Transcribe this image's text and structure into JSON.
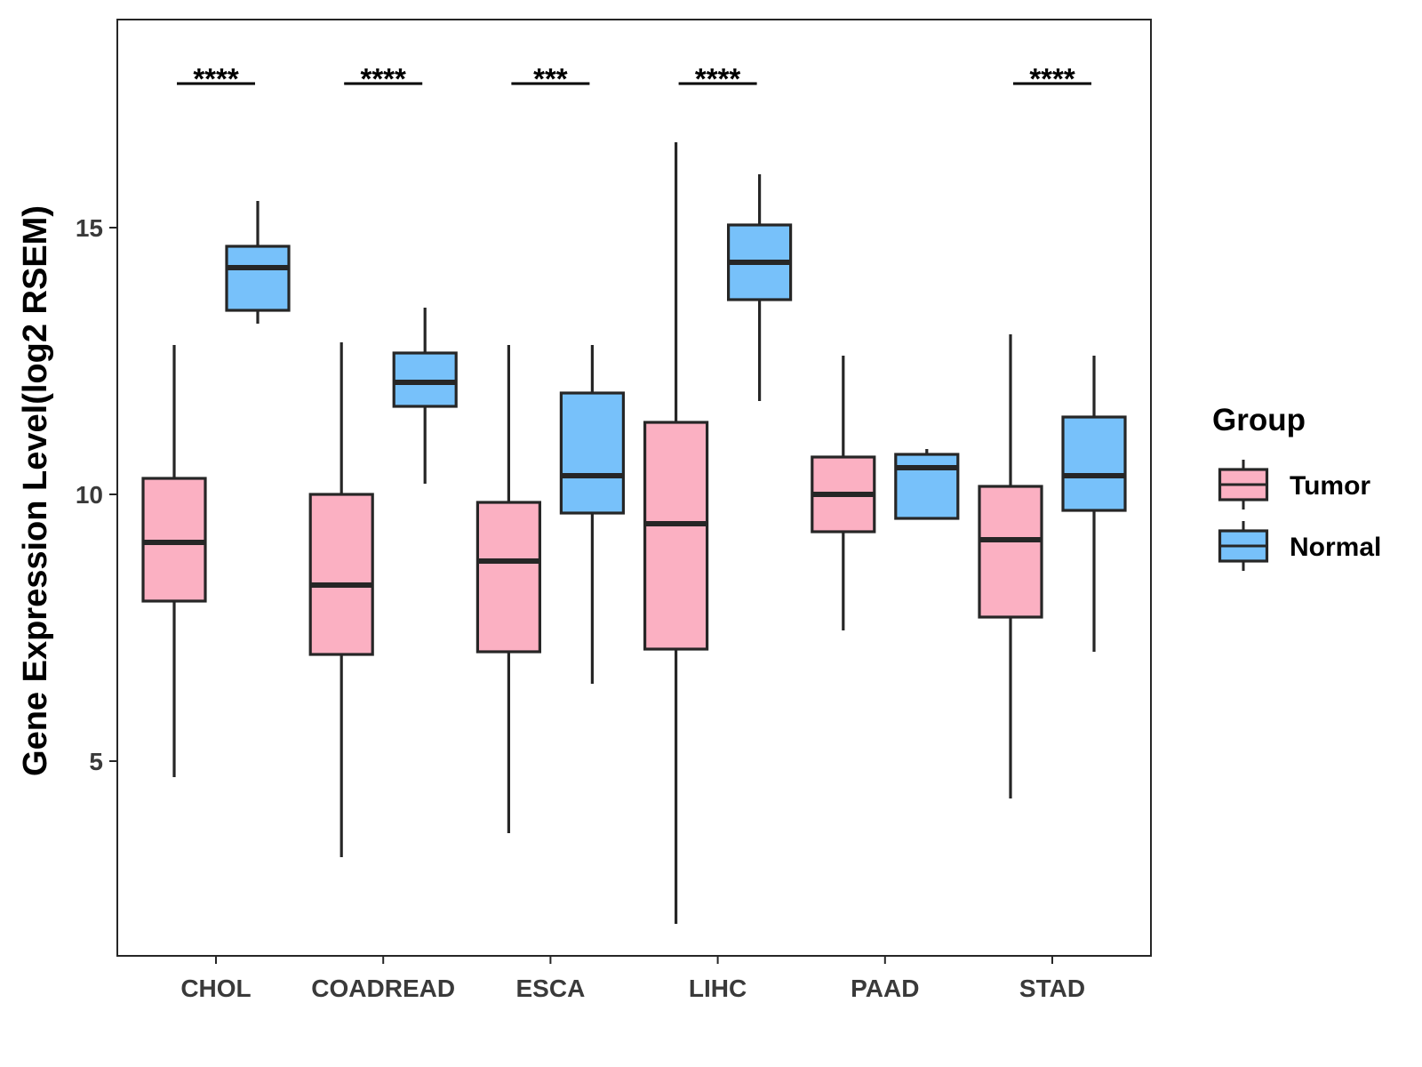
{
  "chart_data": {
    "type": "boxplot",
    "title": "",
    "xlabel": "",
    "ylabel": "Gene Expression Level(log2 RSEM)",
    "ylim": [
      1.35,
      18.9
    ],
    "yticks": [
      5,
      10,
      15
    ],
    "grid": false,
    "legend": {
      "title": "Group",
      "position": "right",
      "entries": [
        "Tumor",
        "Normal"
      ]
    },
    "colors": {
      "Tumor": "#fbb0c2",
      "Normal": "#77c1fa",
      "outline": "#262626"
    },
    "categories": [
      "CHOL",
      "COADREAD",
      "ESCA",
      "LIHC",
      "PAAD",
      "STAD"
    ],
    "series": [
      {
        "name": "Tumor",
        "boxes": [
          {
            "whisker_low": 4.7,
            "q1": 8.0,
            "median": 9.1,
            "q3": 10.3,
            "whisker_high": 12.8
          },
          {
            "whisker_low": 3.2,
            "q1": 7.0,
            "median": 8.3,
            "q3": 10.0,
            "whisker_high": 12.85
          },
          {
            "whisker_low": 3.65,
            "q1": 7.05,
            "median": 8.75,
            "q3": 9.85,
            "whisker_high": 12.8
          },
          {
            "whisker_low": 1.95,
            "q1": 7.1,
            "median": 9.45,
            "q3": 11.35,
            "whisker_high": 16.6
          },
          {
            "whisker_low": 7.45,
            "q1": 9.3,
            "median": 10.0,
            "q3": 10.7,
            "whisker_high": 12.6
          },
          {
            "whisker_low": 4.3,
            "q1": 7.7,
            "median": 9.15,
            "q3": 10.15,
            "whisker_high": 13.0
          }
        ]
      },
      {
        "name": "Normal",
        "boxes": [
          {
            "whisker_low": 13.2,
            "q1": 13.45,
            "median": 14.25,
            "q3": 14.65,
            "whisker_high": 15.5
          },
          {
            "whisker_low": 10.2,
            "q1": 11.65,
            "median": 12.1,
            "q3": 12.65,
            "whisker_high": 13.5
          },
          {
            "whisker_low": 6.45,
            "q1": 9.65,
            "median": 10.35,
            "q3": 11.9,
            "whisker_high": 12.8
          },
          {
            "whisker_low": 11.75,
            "q1": 13.65,
            "median": 14.35,
            "q3": 15.05,
            "whisker_high": 16.0
          },
          {
            "whisker_low": 9.55,
            "q1": 9.55,
            "median": 10.5,
            "q3": 10.75,
            "whisker_high": 10.85
          },
          {
            "whisker_low": 7.05,
            "q1": 9.7,
            "median": 10.35,
            "q3": 11.45,
            "whisker_high": 12.6
          }
        ]
      }
    ],
    "significance": [
      "****",
      "****",
      "***",
      "****",
      "",
      "****"
    ],
    "significance_y": 17.7
  }
}
